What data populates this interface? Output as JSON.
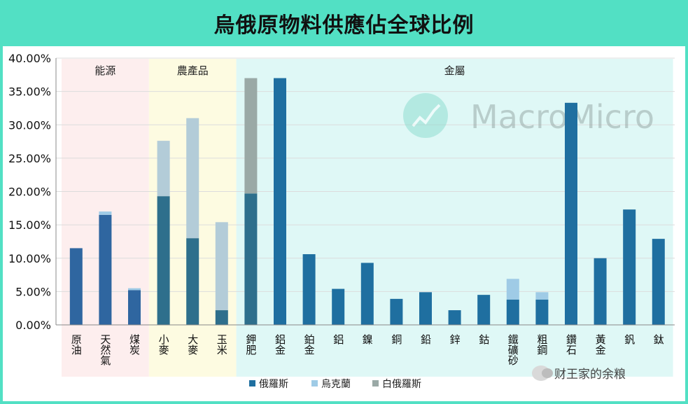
{
  "title": "烏俄原物料供應佔全球比例",
  "watermark_logo": "MacroMicro",
  "footer_text": "财王家的余粮",
  "colors": {
    "header": "#52e0c4",
    "russia": "#1f6fa0",
    "ukraine": "#9fcbe6",
    "belarus": "#9aa9a6",
    "zone_energy": "#fdeeee",
    "zone_agri": "#fdfbe1",
    "zone_metal": "#dff8f6"
  },
  "chart_data": {
    "type": "bar",
    "stacked": true,
    "title": "烏俄原物料供應佔全球比例",
    "ylim": [
      0,
      40
    ],
    "yticks": [
      "0.00%",
      "5.00%",
      "10.00%",
      "15.00%",
      "20.00%",
      "25.00%",
      "30.00%",
      "35.00%",
      "40.00%"
    ],
    "grid": true,
    "legend_position": "bottom",
    "groups": [
      {
        "label": "能源",
        "start": 0,
        "end": 2
      },
      {
        "label": "農產品",
        "start": 3,
        "end": 5
      },
      {
        "label": "金屬",
        "start": 6,
        "end": 20
      }
    ],
    "categories": [
      "原油",
      "天然氣",
      "煤炭",
      "小麥",
      "大麥",
      "玉米",
      "鉀肥",
      "鋁金",
      "鉑金",
      "鋁",
      "鎳",
      "銅",
      "鉛",
      "鋅",
      "鈷",
      "鐵礦砂",
      "粗鋼",
      "鑽石",
      "黃金",
      "釩",
      "鈦"
    ],
    "series": [
      {
        "name": "俄羅斯",
        "values": [
          11.5,
          16.5,
          5.2,
          19.3,
          13.0,
          2.2,
          19.7,
          37.0,
          10.6,
          5.4,
          9.3,
          3.9,
          4.9,
          2.2,
          4.5,
          3.8,
          3.8,
          33.3,
          10.0,
          17.3,
          12.9
        ]
      },
      {
        "name": "烏克蘭",
        "values": [
          0,
          0.5,
          0.3,
          8.3,
          18.0,
          13.2,
          0,
          0,
          0,
          0,
          0,
          0,
          0,
          0,
          0,
          3.1,
          1.1,
          0,
          0,
          0,
          0
        ]
      },
      {
        "name": "白俄羅斯",
        "values": [
          0,
          0,
          0,
          0,
          0,
          0,
          17.3,
          0,
          0,
          0,
          0,
          0,
          0,
          0,
          0,
          0,
          0,
          0,
          0,
          0,
          0
        ]
      }
    ]
  }
}
